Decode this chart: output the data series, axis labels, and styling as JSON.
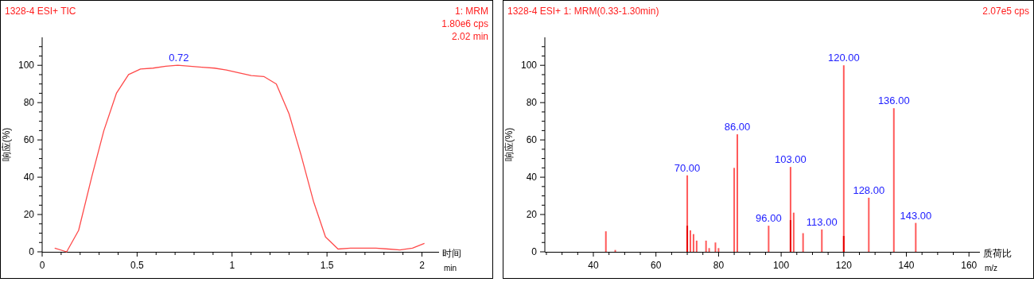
{
  "chart_data": [
    {
      "type": "line",
      "title": "1328-4 ESI+ TIC",
      "subtitle": "1: MRM\n1.80e6 cps\n2.02 min",
      "xlabel": "时间\nmin",
      "ylabel": "响应(%)",
      "xlim": [
        0,
        2.09
      ],
      "xticks": [
        0,
        {
          "value": 0.1,
          "label": null
        },
        {
          "value": 0.2,
          "label": null
        },
        {
          "value": 0.3,
          "label": null
        },
        {
          "value": 0.4,
          "label": null
        },
        0.5,
        {
          "value": 0.6,
          "label": null
        },
        {
          "value": 0.7,
          "label": null
        },
        {
          "value": 0.8,
          "label": null
        },
        {
          "value": 0.9,
          "label": null
        },
        1,
        {
          "value": 1.1,
          "label": null
        },
        {
          "value": 1.2,
          "label": null
        },
        {
          "value": 1.3,
          "label": null
        },
        {
          "value": 1.4,
          "label": null
        },
        1.5,
        {
          "value": 1.6,
          "label": null
        },
        {
          "value": 1.7,
          "label": null
        },
        {
          "value": 1.8,
          "label": null
        },
        {
          "value": 1.9,
          "label": null
        },
        2
      ],
      "ylim": [
        0,
        115
      ],
      "yticks": [
        0,
        {
          "value": 5,
          "label": null
        },
        {
          "value": 10,
          "label": null
        },
        {
          "value": 15,
          "label": null
        },
        20,
        {
          "value": 25,
          "label": null
        },
        {
          "value": 30,
          "label": null
        },
        {
          "value": 35,
          "label": null
        },
        40,
        {
          "value": 45,
          "label": null
        },
        {
          "value": 50,
          "label": null
        },
        {
          "value": 55,
          "label": null
        },
        60,
        {
          "value": 65,
          "label": null
        },
        {
          "value": 70,
          "label": null
        },
        {
          "value": 75,
          "label": null
        },
        80,
        {
          "value": 85,
          "label": null
        },
        {
          "value": 90,
          "label": null
        },
        {
          "value": 95,
          "label": null
        },
        100,
        {
          "value": 105,
          "label": null
        },
        {
          "value": 110,
          "label": null
        }
      ],
      "series": [
        {
          "color": "#ff4a4a",
          "x": [
            0.066,
            0.129,
            0.192,
            0.262,
            0.325,
            0.391,
            0.455,
            0.518,
            0.584,
            0.651,
            0.714,
            0.778,
            0.841,
            0.907,
            0.97,
            1.035,
            1.101,
            1.167,
            1.233,
            1.3,
            1.363,
            1.429,
            1.492,
            1.558,
            1.624,
            1.69,
            1.757,
            1.823,
            1.884,
            1.95,
            2.013
          ],
          "values": [
            2,
            0,
            11.5,
            40.5,
            65,
            85,
            95,
            98,
            98.5,
            99.5,
            100,
            99.5,
            99,
            98.5,
            97.5,
            96,
            94.5,
            94,
            90,
            74,
            52,
            27,
            8,
            1.5,
            2,
            2,
            2,
            1.5,
            1,
            2,
            4.5
          ]
        }
      ],
      "annotations": [
        {
          "text": "0.72",
          "x": 0.72,
          "y": 100
        }
      ]
    },
    {
      "type": "bar",
      "title": "1328-4 ESI+ 1: MRM(0.33-1.30min)",
      "subtitle": "2.07e5 cps",
      "xlabel": "质荷比\nm/z",
      "ylabel": "响应(%)",
      "xlim": [
        24.5,
        163.5
      ],
      "xticks": [
        {
          "value": 25,
          "label": null
        },
        {
          "value": 30,
          "label": null
        },
        {
          "value": 35,
          "label": null
        },
        40,
        {
          "value": 45,
          "label": null
        },
        {
          "value": 50,
          "label": null
        },
        {
          "value": 55,
          "label": null
        },
        60,
        {
          "value": 65,
          "label": null
        },
        {
          "value": 70,
          "label": null
        },
        {
          "value": 75,
          "label": null
        },
        80,
        {
          "value": 85,
          "label": null
        },
        {
          "value": 90,
          "label": null
        },
        {
          "value": 95,
          "label": null
        },
        100,
        {
          "value": 105,
          "label": null
        },
        {
          "value": 110,
          "label": null
        },
        {
          "value": 115,
          "label": null
        },
        120,
        {
          "value": 125,
          "label": null
        },
        {
          "value": 130,
          "label": null
        },
        {
          "value": 135,
          "label": null
        },
        140,
        {
          "value": 145,
          "label": null
        },
        {
          "value": 150,
          "label": null
        },
        {
          "value": 155,
          "label": null
        },
        160
      ],
      "ylim": [
        0,
        115
      ],
      "yticks": [
        0,
        {
          "value": 5,
          "label": null
        },
        {
          "value": 10,
          "label": null
        },
        {
          "value": 15,
          "label": null
        },
        20,
        {
          "value": 25,
          "label": null
        },
        {
          "value": 30,
          "label": null
        },
        {
          "value": 35,
          "label": null
        },
        40,
        {
          "value": 45,
          "label": null
        },
        {
          "value": 50,
          "label": null
        },
        {
          "value": 55,
          "label": null
        },
        60,
        {
          "value": 65,
          "label": null
        },
        {
          "value": 70,
          "label": null
        },
        {
          "value": 75,
          "label": null
        },
        80,
        {
          "value": 85,
          "label": null
        },
        {
          "value": 90,
          "label": null
        },
        {
          "value": 95,
          "label": null
        },
        100,
        {
          "value": 105,
          "label": null
        },
        {
          "value": 110,
          "label": null
        }
      ],
      "series": [
        {
          "color": "#ff5a5a",
          "x": [
            44,
            47,
            70,
            71,
            72,
            73,
            76,
            77,
            79,
            80,
            85,
            86,
            96,
            103,
            104,
            107,
            113,
            120,
            128,
            136,
            143
          ],
          "values": [
            11,
            1,
            41,
            11.5,
            9.5,
            6,
            6,
            2,
            5,
            2,
            45,
            63,
            14,
            45.5,
            21,
            10,
            12,
            100,
            29,
            77,
            15.5
          ]
        },
        {
          "color": "#e80000",
          "x": [
            70,
            103,
            120
          ],
          "values": [
            14,
            17,
            8.5
          ]
        }
      ],
      "annotations": [
        {
          "text": "70.00",
          "x": 70,
          "y": 41
        },
        {
          "text": "86.00",
          "x": 86,
          "y": 63
        },
        {
          "text": "96.00",
          "x": 96,
          "y": 14
        },
        {
          "text": "103.00",
          "x": 103,
          "y": 45.5
        },
        {
          "text": "113.00",
          "x": 113,
          "y": 12
        },
        {
          "text": "120.00",
          "x": 120,
          "y": 100
        },
        {
          "text": "128.00",
          "x": 128,
          "y": 29
        },
        {
          "text": "136.00",
          "x": 136,
          "y": 77
        },
        {
          "text": "143.00",
          "x": 143,
          "y": 15.5
        }
      ]
    }
  ]
}
